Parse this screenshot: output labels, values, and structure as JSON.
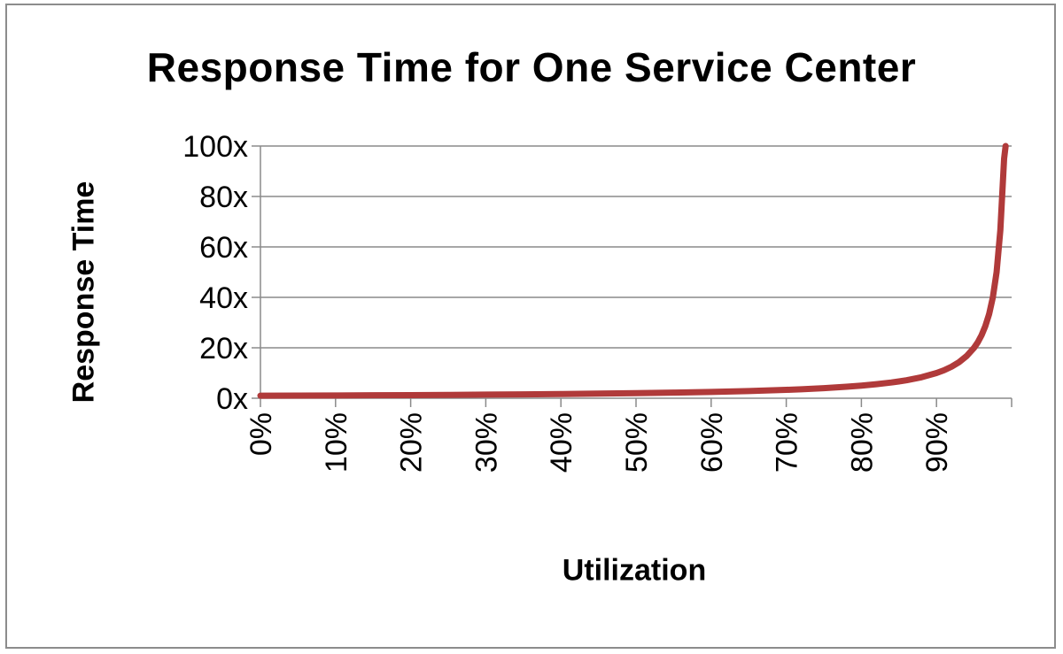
{
  "chart_data": {
    "type": "line",
    "title": "Response Time for One Service Center",
    "xlabel": "Utilization",
    "ylabel": "Response Time",
    "xlim": [
      0,
      100
    ],
    "ylim": [
      0,
      100
    ],
    "x_ticks": [
      0,
      10,
      20,
      30,
      40,
      50,
      60,
      70,
      80,
      90
    ],
    "x_tick_labels": [
      "0%",
      "10%",
      "20%",
      "30%",
      "40%",
      "50%",
      "60%",
      "70%",
      "80%",
      "90%"
    ],
    "y_ticks": [
      0,
      20,
      40,
      60,
      80,
      100
    ],
    "y_tick_labels": [
      "0x",
      "20x",
      "40x",
      "60x",
      "80x",
      "100x"
    ],
    "grid": true,
    "legend": "none",
    "series": [
      {
        "color": "#b03a3a",
        "x": [
          0,
          5,
          10,
          15,
          20,
          25,
          30,
          35,
          40,
          45,
          50,
          55,
          60,
          65,
          70,
          72,
          75,
          78,
          80,
          82,
          84,
          85,
          86,
          88,
          90,
          91,
          92,
          93,
          94,
          95,
          95.5,
          96,
          96.5,
          97,
          97.5,
          98,
          98.5,
          99,
          99.2
        ],
        "y": [
          1,
          1.05,
          1.11,
          1.18,
          1.25,
          1.33,
          1.43,
          1.54,
          1.67,
          1.82,
          2,
          2.22,
          2.5,
          2.86,
          3.33,
          3.57,
          4,
          4.55,
          5,
          5.56,
          6.25,
          6.67,
          7.14,
          8.33,
          10,
          11.1,
          12.5,
          14.3,
          16.7,
          20,
          22.2,
          25,
          28.6,
          33.3,
          40,
          50,
          66.7,
          95,
          100
        ]
      }
    ]
  }
}
